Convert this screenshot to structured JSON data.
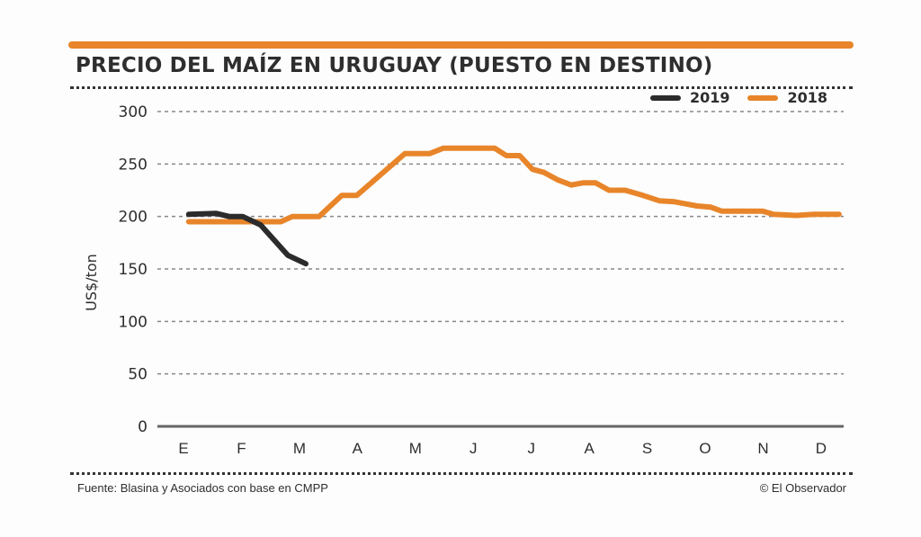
{
  "header": {
    "title": "PRECIO DEL MAÍZ EN URUGUAY (PUESTO EN DESTINO)"
  },
  "footer": {
    "source": "Fuente: Blasina y Asociados con base en CMPP",
    "credit": "© El Observador"
  },
  "colors": {
    "accent": "#E8852A",
    "series_2019": "#2b2b2b",
    "series_2018": "#E8852A",
    "text": "#2e2e2e"
  },
  "chart_data": {
    "type": "line",
    "title": "PRECIO DEL MAÍZ EN URUGUAY (PUESTO EN DESTINO)",
    "xlabel": "",
    "ylabel": "US$/ton",
    "ylim": [
      0,
      300
    ],
    "yticks": [
      0,
      50,
      100,
      150,
      200,
      250,
      300
    ],
    "categories": [
      "E",
      "F",
      "M",
      "A",
      "M",
      "J",
      "J",
      "A",
      "S",
      "O",
      "N",
      "D"
    ],
    "x_unit": "month index (0 = E)",
    "grid": true,
    "legend": {
      "placement": "top-right",
      "entries": [
        "2019",
        "2018"
      ]
    },
    "series": [
      {
        "name": "2019",
        "color": "#2b2b2b",
        "x": [
          0.09,
          0.56,
          0.79,
          1.02,
          1.33,
          1.8,
          2.11
        ],
        "values": [
          202,
          203,
          200,
          200,
          192,
          163,
          155
        ]
      },
      {
        "name": "2018",
        "color": "#E8852A",
        "x": [
          0.09,
          1.68,
          1.88,
          2.34,
          2.73,
          2.99,
          3.82,
          4.25,
          4.48,
          5.37,
          5.57,
          5.8,
          6.02,
          6.22,
          6.45,
          6.69,
          6.89,
          7.11,
          7.34,
          7.62,
          7.93,
          8.21,
          8.47,
          8.86,
          9.09,
          9.29,
          9.99,
          10.18,
          10.57,
          10.88,
          11.31
        ],
        "values": [
          195,
          195,
          200,
          200,
          220,
          220,
          260,
          260,
          265,
          265,
          258,
          258,
          245,
          242,
          235,
          230,
          232,
          232,
          225,
          225,
          220,
          215,
          214,
          210,
          209,
          205,
          205,
          202,
          201,
          202,
          202
        ]
      }
    ]
  }
}
